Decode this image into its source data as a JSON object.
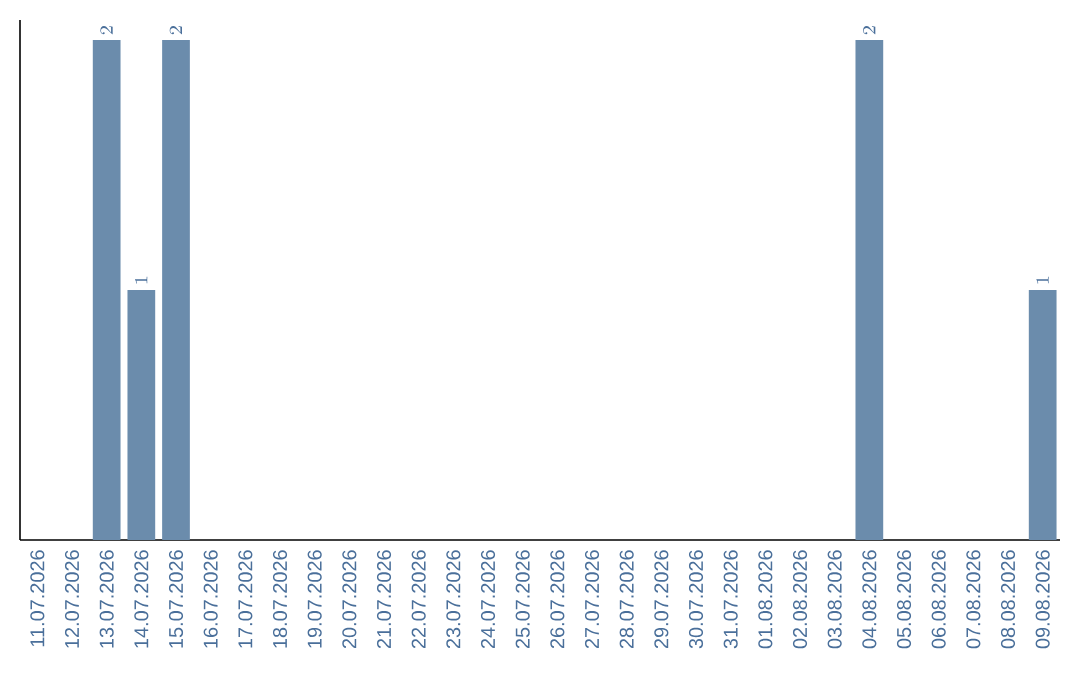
{
  "chart_data": {
    "type": "bar",
    "categories": [
      "11.07.2026",
      "12.07.2026",
      "13.07.2026",
      "14.07.2026",
      "15.07.2026",
      "16.07.2026",
      "17.07.2026",
      "18.07.2026",
      "19.07.2026",
      "20.07.2026",
      "21.07.2026",
      "22.07.2026",
      "23.07.2026",
      "24.07.2026",
      "25.07.2026",
      "26.07.2026",
      "27.07.2026",
      "28.07.2026",
      "29.07.2026",
      "30.07.2026",
      "31.07.2026",
      "01.08.2026",
      "02.08.2026",
      "03.08.2026",
      "04.08.2026",
      "05.08.2026",
      "06.08.2026",
      "07.08.2026",
      "08.08.2026",
      "09.08.2026"
    ],
    "values": [
      null,
      null,
      2,
      1,
      2,
      null,
      null,
      null,
      null,
      null,
      null,
      null,
      null,
      null,
      null,
      null,
      null,
      null,
      null,
      null,
      null,
      null,
      null,
      null,
      2,
      null,
      null,
      null,
      null,
      1
    ],
    "color": "#6b8cac",
    "data_labels": true
  }
}
